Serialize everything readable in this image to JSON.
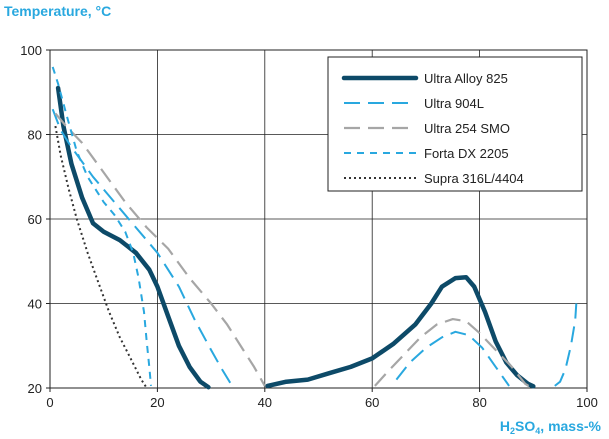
{
  "chart_data": {
    "type": "line",
    "ylabel": "Temperature, °C",
    "xlabel": "H₂SO₄, mass-%",
    "xlabel_parts": {
      "chem_h": "H",
      "sub2": "2",
      "chem_so": "SO",
      "sub4": "4",
      "unit": ", mass-%"
    },
    "xlim": [
      0,
      100
    ],
    "ylim": [
      20,
      100
    ],
    "x_ticks": [
      0,
      20,
      40,
      60,
      80,
      100
    ],
    "x_tick_labels": [
      "0",
      "20",
      "40",
      "60",
      "80",
      "100"
    ],
    "y_ticks": [
      20,
      40,
      60,
      80,
      100
    ],
    "y_tick_labels": [
      "20",
      "40",
      "60",
      "80",
      "100"
    ],
    "grid": true,
    "legend_position": "top-right",
    "series": [
      {
        "name": "Ultra Alloy 825",
        "color": "#0d4a68",
        "style": "thick-solid",
        "segments": [
          [
            [
              1.5,
              91
            ],
            [
              2.5,
              82
            ],
            [
              4,
              73
            ],
            [
              6,
              65
            ],
            [
              8,
              59
            ],
            [
              10,
              57
            ],
            [
              13,
              55
            ],
            [
              16,
              52
            ],
            [
              18.5,
              48
            ],
            [
              20,
              44
            ],
            [
              22,
              37
            ],
            [
              24,
              30
            ],
            [
              26,
              25
            ],
            [
              28,
              21.5
            ],
            [
              29.5,
              20.2
            ]
          ],
          [
            [
              40.5,
              20.5
            ],
            [
              44,
              21.5
            ],
            [
              48,
              22
            ],
            [
              52,
              23.5
            ],
            [
              56,
              25
            ],
            [
              60,
              27
            ],
            [
              64,
              30.5
            ],
            [
              68,
              35
            ],
            [
              71,
              40
            ],
            [
              73,
              44
            ],
            [
              75.5,
              46
            ],
            [
              77.5,
              46.2
            ],
            [
              79,
              44
            ],
            [
              81,
              38
            ],
            [
              83,
              31
            ],
            [
              85,
              26
            ],
            [
              87,
              23
            ],
            [
              89,
              21
            ],
            [
              90,
              20.4
            ]
          ]
        ]
      },
      {
        "name": "Ultra 904L",
        "color": "#29a8df",
        "style": "dash-long",
        "segments": [
          [
            [
              0.5,
              86
            ],
            [
              2,
              81
            ],
            [
              4,
              77
            ],
            [
              8,
              70
            ],
            [
              12,
              64
            ],
            [
              16,
              58
            ],
            [
              20,
              52
            ],
            [
              24,
              44
            ],
            [
              27,
              36
            ],
            [
              30,
              29
            ],
            [
              32,
              24.5
            ],
            [
              34,
              20.3
            ]
          ],
          [
            [
              64.5,
              22
            ],
            [
              67,
              26
            ],
            [
              70,
              29.5
            ],
            [
              73,
              32
            ],
            [
              75.5,
              33.3
            ],
            [
              78,
              32.5
            ],
            [
              80.5,
              29.5
            ],
            [
              83,
              25
            ],
            [
              85.5,
              20.5
            ]
          ],
          [
            [
              94,
              20.5
            ],
            [
              95,
              21.5
            ],
            [
              96,
              24.5
            ],
            [
              97,
              30
            ],
            [
              97.8,
              36
            ],
            [
              98,
              40
            ]
          ]
        ]
      },
      {
        "name": "Ultra 254 SMO",
        "color": "#a6a6a6",
        "style": "dash-long-gray",
        "segments": [
          [
            [
              1,
              85
            ],
            [
              3,
              82
            ],
            [
              6,
              78
            ],
            [
              10,
              71
            ],
            [
              14,
              64
            ],
            [
              18,
              58
            ],
            [
              22,
              53
            ],
            [
              26,
              46
            ],
            [
              30,
              40
            ],
            [
              33,
              35
            ],
            [
              36,
              29
            ],
            [
              38,
              25
            ],
            [
              40,
              20.5
            ]
          ],
          [
            [
              60.5,
              20.5
            ],
            [
              63,
              24
            ],
            [
              66,
              28
            ],
            [
              69,
              32
            ],
            [
              72,
              35
            ],
            [
              75,
              36.3
            ],
            [
              77.5,
              35.8
            ],
            [
              80,
              33
            ],
            [
              83,
              29
            ],
            [
              86,
              25
            ],
            [
              88.5,
              21
            ],
            [
              89.5,
              20.2
            ]
          ]
        ]
      },
      {
        "name": "Forta DX 2205",
        "color": "#29a8df",
        "style": "dash-short",
        "segments": [
          [
            [
              0.5,
              96
            ],
            [
              1.5,
              92
            ],
            [
              3,
              85
            ],
            [
              5,
              76
            ],
            [
              7,
              70
            ],
            [
              10,
              64
            ],
            [
              12,
              61
            ],
            [
              14,
              57
            ],
            [
              15.5,
              52
            ],
            [
              16.5,
              46
            ],
            [
              17.5,
              38
            ],
            [
              18,
              31
            ],
            [
              18.5,
              25
            ],
            [
              18.8,
              20.5
            ]
          ]
        ]
      },
      {
        "name": "Supra 316L/4404",
        "color": "#333333",
        "style": "dotted",
        "segments": [
          [
            [
              1,
              82
            ],
            [
              2,
              75
            ],
            [
              3.5,
              67
            ],
            [
              5,
              60
            ],
            [
              7,
              52
            ],
            [
              9,
              45
            ],
            [
              11,
              38
            ],
            [
              13,
              32
            ],
            [
              15,
              27
            ],
            [
              17,
              22
            ],
            [
              18,
              20
            ]
          ]
        ]
      }
    ]
  }
}
